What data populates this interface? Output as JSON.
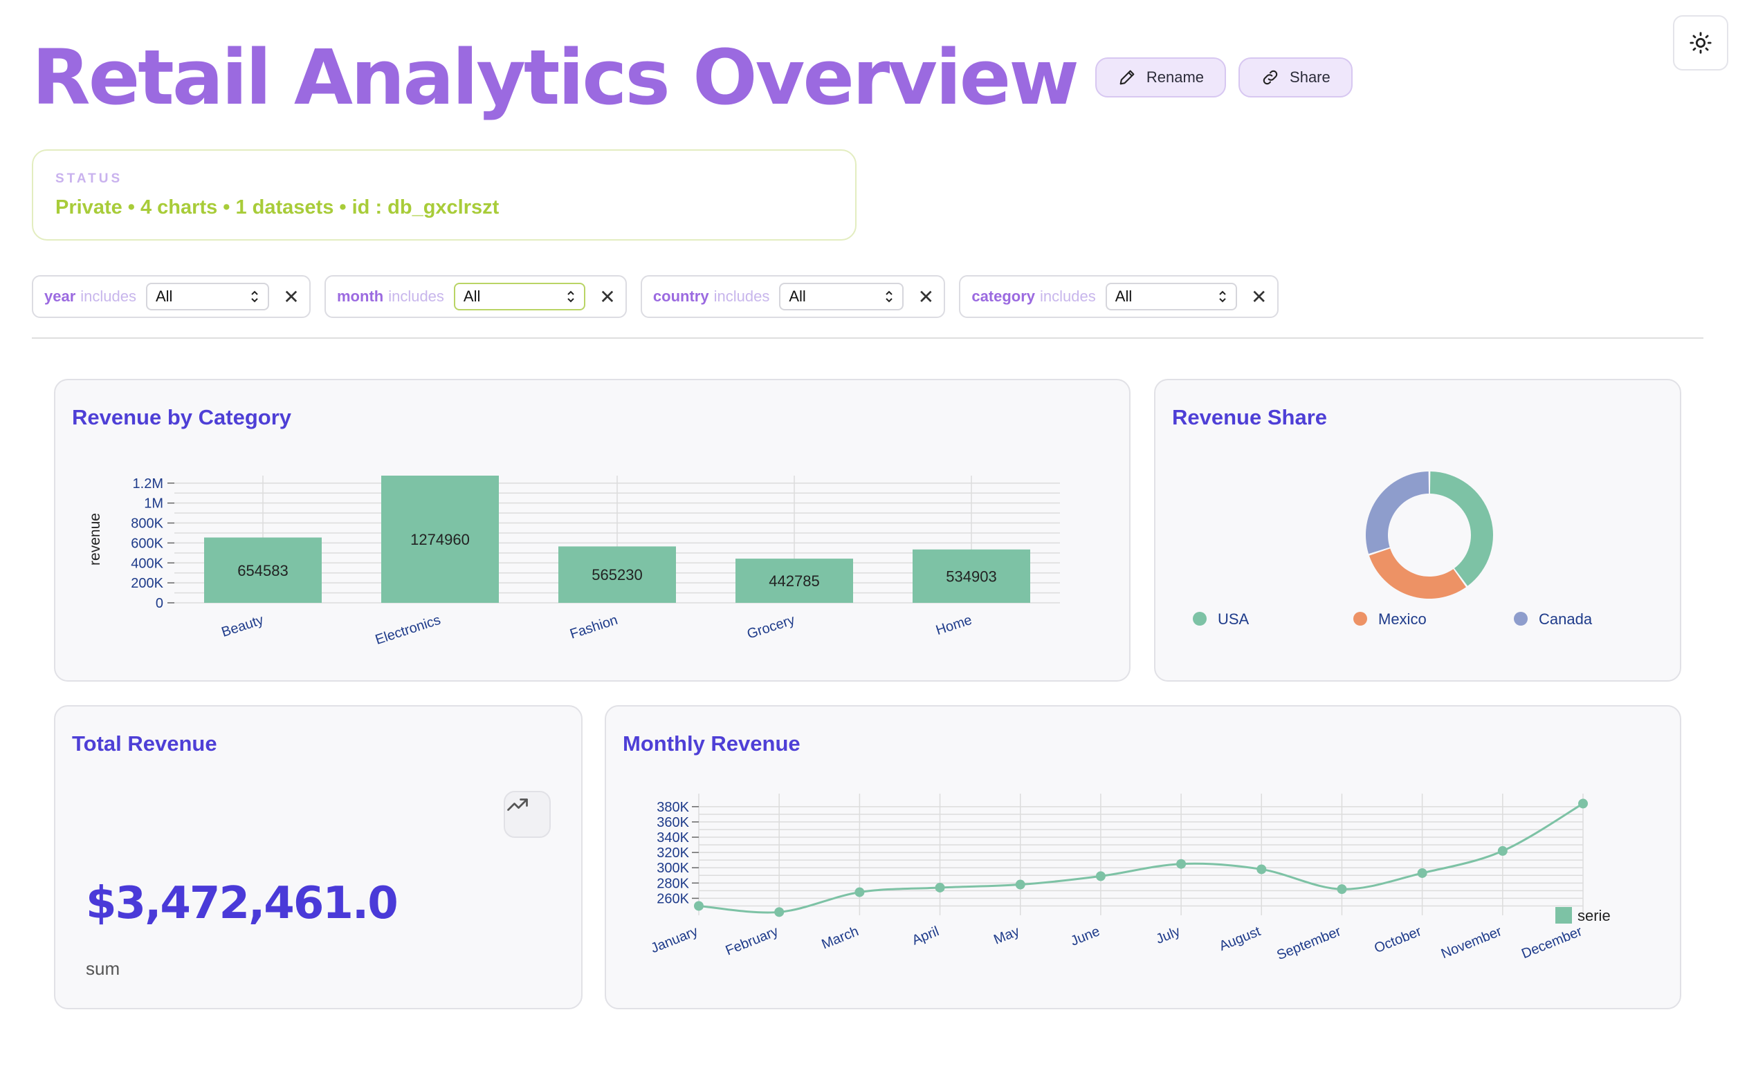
{
  "header": {
    "title": "Retail Analytics Overview",
    "rename_label": "Rename",
    "share_label": "Share"
  },
  "status": {
    "label": "STATUS",
    "text": "Private • 4 charts • 1 datasets • id : db_gxclrszt"
  },
  "filters": [
    {
      "field": "year",
      "op": "includes",
      "value": "All"
    },
    {
      "field": "month",
      "op": "includes",
      "value": "All"
    },
    {
      "field": "country",
      "op": "includes",
      "value": "All"
    },
    {
      "field": "category",
      "op": "includes",
      "value": "All"
    }
  ],
  "colors": {
    "accent": "#9b6ae0",
    "title_blue": "#4e3fd6",
    "status_green": "#a8cc39",
    "series_green": "#7dc2a5",
    "series_orange": "#ed9265",
    "series_purple": "#8e9dcc"
  },
  "icons": {
    "theme": "sun-icon",
    "rename": "pencil-icon",
    "share": "link-icon",
    "remove_filter": "close-icon",
    "kpi_trend": "trending-up-icon"
  },
  "cards": {
    "revenue_by_category": {
      "title": "Revenue by Category"
    },
    "revenue_share": {
      "title": "Revenue Share"
    },
    "total_revenue": {
      "title": "Total Revenue",
      "value": "$3,472,461.0",
      "sub": "sum"
    },
    "monthly_revenue": {
      "title": "Monthly Revenue"
    }
  },
  "chart_data": [
    {
      "type": "bar",
      "title": "Revenue by Category",
      "ylabel": "revenue",
      "xlabel": "",
      "categories": [
        "Beauty",
        "Electronics",
        "Fashion",
        "Grocery",
        "Home"
      ],
      "values": [
        654583,
        1274960,
        565230,
        442785,
        534903
      ],
      "yticks": [
        "0",
        "200K",
        "400K",
        "600K",
        "800K",
        "1M",
        "1.2M"
      ],
      "ylim": [
        0,
        1274960
      ],
      "grid": true
    },
    {
      "type": "pie",
      "donut": true,
      "title": "Revenue Share",
      "labels": [
        "USA",
        "Mexico",
        "Canada"
      ],
      "values": [
        0.4,
        0.3,
        0.3
      ],
      "legend": "bottom"
    },
    {
      "type": "line",
      "title": "Monthly Revenue",
      "categories": [
        "January",
        "February",
        "March",
        "April",
        "May",
        "June",
        "July",
        "August",
        "September",
        "October",
        "November",
        "December"
      ],
      "series": [
        {
          "name": "serie",
          "values": [
            250000,
            242000,
            268000,
            274000,
            278000,
            289000,
            305000,
            298000,
            272000,
            293000,
            322000,
            384000
          ]
        }
      ],
      "yticks": [
        "260K",
        "280K",
        "300K",
        "320K",
        "340K",
        "360K",
        "380K"
      ],
      "ylim": [
        245000,
        388000
      ],
      "legend": "right",
      "grid": true
    }
  ]
}
